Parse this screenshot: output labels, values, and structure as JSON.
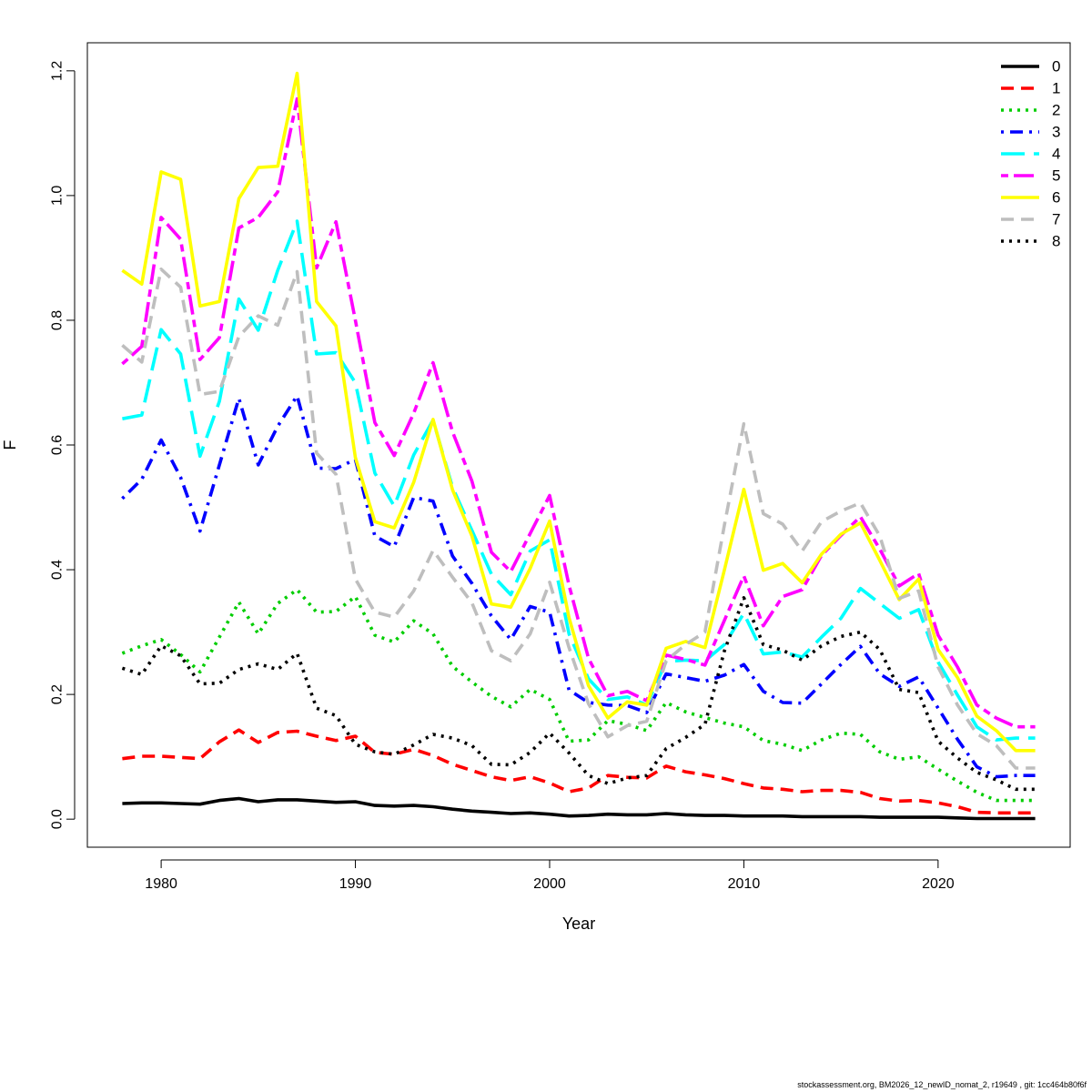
{
  "chart_data": {
    "type": "line",
    "title": "",
    "xlabel": "Year",
    "ylabel": "F",
    "xlim": [
      1976.2,
      1926.8
    ],
    "ylim": [
      -0.045,
      1.245
    ],
    "x_ticks": [
      1980,
      1990,
      2000,
      2010,
      2020
    ],
    "y_ticks": [
      0.0,
      0.2,
      0.4,
      0.6,
      0.8,
      1.0,
      1.2
    ],
    "y_tick_labels": [
      "0.0",
      "0.2",
      "0.4",
      "0.6",
      "0.8",
      "1.0",
      "1.2"
    ],
    "x_tick_labels": [
      "1980",
      "1990",
      "2000",
      "2010",
      "2020"
    ],
    "grid": false,
    "legend_position": "top-right",
    "x": [
      1978,
      1979,
      1980,
      1981,
      1982,
      1983,
      1984,
      1985,
      1986,
      1987,
      1988,
      1989,
      1990,
      1991,
      1992,
      1993,
      1994,
      1995,
      1996,
      1997,
      1998,
      1999,
      2000,
      2001,
      2002,
      2003,
      2004,
      2005,
      2006,
      2007,
      2008,
      2009,
      2010,
      2011,
      2012,
      2013,
      2014,
      2015,
      2016,
      2017,
      2018,
      2019,
      2020,
      2021,
      2022,
      2023,
      2024,
      2025
    ],
    "series": [
      {
        "name": "0",
        "color": "#000000",
        "dash": "solid",
        "values": [
          0.025,
          0.026,
          0.026,
          0.025,
          0.024,
          0.03,
          0.033,
          0.028,
          0.031,
          0.031,
          0.029,
          0.027,
          0.028,
          0.022,
          0.021,
          0.022,
          0.02,
          0.016,
          0.013,
          0.011,
          0.009,
          0.01,
          0.008,
          0.005,
          0.006,
          0.008,
          0.007,
          0.007,
          0.009,
          0.007,
          0.006,
          0.006,
          0.005,
          0.005,
          0.005,
          0.004,
          0.004,
          0.004,
          0.004,
          0.003,
          0.003,
          0.003,
          0.003,
          0.002,
          0.001,
          0.001,
          0.001,
          0.001
        ]
      },
      {
        "name": "1",
        "color": "#ff0000",
        "dash": "dashed",
        "values": [
          0.097,
          0.101,
          0.101,
          0.099,
          0.097,
          0.124,
          0.143,
          0.123,
          0.139,
          0.141,
          0.133,
          0.126,
          0.133,
          0.107,
          0.104,
          0.112,
          0.102,
          0.088,
          0.078,
          0.068,
          0.062,
          0.068,
          0.058,
          0.044,
          0.05,
          0.07,
          0.067,
          0.066,
          0.085,
          0.076,
          0.071,
          0.065,
          0.057,
          0.05,
          0.048,
          0.044,
          0.046,
          0.046,
          0.043,
          0.033,
          0.029,
          0.03,
          0.026,
          0.02,
          0.011,
          0.01,
          0.01,
          0.01
        ]
      },
      {
        "name": "2",
        "color": "#00cd00",
        "dash": "dotted",
        "values": [
          0.266,
          0.278,
          0.288,
          0.264,
          0.236,
          0.292,
          0.348,
          0.297,
          0.346,
          0.368,
          0.332,
          0.333,
          0.357,
          0.295,
          0.284,
          0.318,
          0.297,
          0.245,
          0.22,
          0.197,
          0.18,
          0.208,
          0.192,
          0.125,
          0.127,
          0.158,
          0.152,
          0.142,
          0.187,
          0.172,
          0.163,
          0.154,
          0.148,
          0.126,
          0.12,
          0.11,
          0.127,
          0.138,
          0.136,
          0.108,
          0.096,
          0.1,
          0.08,
          0.061,
          0.043,
          0.03,
          0.03,
          0.03
        ]
      },
      {
        "name": "3",
        "color": "#0000ff",
        "dash": "dotdash",
        "values": [
          0.514,
          0.545,
          0.608,
          0.548,
          0.462,
          0.568,
          0.675,
          0.568,
          0.63,
          0.679,
          0.563,
          0.562,
          0.577,
          0.454,
          0.437,
          0.516,
          0.51,
          0.422,
          0.378,
          0.326,
          0.288,
          0.341,
          0.332,
          0.207,
          0.187,
          0.183,
          0.182,
          0.171,
          0.233,
          0.227,
          0.221,
          0.231,
          0.248,
          0.205,
          0.187,
          0.186,
          0.217,
          0.248,
          0.277,
          0.233,
          0.213,
          0.228,
          0.178,
          0.128,
          0.084,
          0.068,
          0.07,
          0.07
        ]
      },
      {
        "name": "4",
        "color": "#00ffff",
        "dash": "longdash",
        "values": [
          0.642,
          0.648,
          0.785,
          0.746,
          0.582,
          0.67,
          0.834,
          0.784,
          0.88,
          0.959,
          0.746,
          0.748,
          0.7,
          0.555,
          0.502,
          0.584,
          0.64,
          0.532,
          0.463,
          0.393,
          0.36,
          0.43,
          0.448,
          0.297,
          0.225,
          0.192,
          0.196,
          0.183,
          0.253,
          0.255,
          0.254,
          0.28,
          0.33,
          0.265,
          0.268,
          0.26,
          0.292,
          0.322,
          0.37,
          0.346,
          0.322,
          0.336,
          0.252,
          0.199,
          0.148,
          0.127,
          0.13,
          0.13
        ]
      },
      {
        "name": "5",
        "color": "#ff00ff",
        "dash": "twodash",
        "values": [
          0.73,
          0.758,
          0.965,
          0.93,
          0.737,
          0.772,
          0.948,
          0.965,
          1.006,
          1.155,
          0.884,
          0.958,
          0.8,
          0.636,
          0.583,
          0.651,
          0.732,
          0.621,
          0.542,
          0.428,
          0.397,
          0.458,
          0.519,
          0.375,
          0.258,
          0.198,
          0.205,
          0.19,
          0.263,
          0.256,
          0.247,
          0.319,
          0.39,
          0.31,
          0.357,
          0.368,
          0.423,
          0.455,
          0.485,
          0.433,
          0.374,
          0.394,
          0.295,
          0.244,
          0.183,
          0.162,
          0.148,
          0.148
        ]
      },
      {
        "name": "6",
        "color": "#ffff00",
        "dash": "solid",
        "values": [
          0.88,
          0.858,
          1.038,
          1.026,
          0.823,
          0.83,
          0.995,
          1.045,
          1.047,
          1.196,
          0.83,
          0.791,
          0.58,
          0.477,
          0.467,
          0.54,
          0.641,
          0.528,
          0.454,
          0.345,
          0.34,
          0.402,
          0.478,
          0.323,
          0.214,
          0.162,
          0.188,
          0.183,
          0.274,
          0.285,
          0.275,
          0.4,
          0.529,
          0.399,
          0.41,
          0.379,
          0.425,
          0.457,
          0.475,
          0.415,
          0.352,
          0.385,
          0.272,
          0.227,
          0.165,
          0.142,
          0.11,
          0.11
        ]
      },
      {
        "name": "7",
        "color": "#bebebe",
        "dash": "dashed",
        "values": [
          0.76,
          0.733,
          0.882,
          0.853,
          0.681,
          0.686,
          0.774,
          0.807,
          0.792,
          0.878,
          0.587,
          0.553,
          0.385,
          0.332,
          0.324,
          0.366,
          0.431,
          0.388,
          0.347,
          0.27,
          0.254,
          0.297,
          0.38,
          0.275,
          0.185,
          0.132,
          0.15,
          0.157,
          0.254,
          0.28,
          0.3,
          0.472,
          0.634,
          0.49,
          0.473,
          0.43,
          0.477,
          0.494,
          0.507,
          0.454,
          0.354,
          0.366,
          0.244,
          0.183,
          0.137,
          0.118,
          0.082,
          0.082
        ]
      },
      {
        "name": "8",
        "color": "#000000",
        "dash": "dotted",
        "values": [
          0.242,
          0.232,
          0.278,
          0.262,
          0.217,
          0.218,
          0.24,
          0.249,
          0.24,
          0.266,
          0.178,
          0.166,
          0.12,
          0.108,
          0.104,
          0.119,
          0.136,
          0.13,
          0.118,
          0.088,
          0.087,
          0.107,
          0.138,
          0.106,
          0.07,
          0.057,
          0.066,
          0.07,
          0.113,
          0.131,
          0.152,
          0.27,
          0.355,
          0.28,
          0.271,
          0.255,
          0.278,
          0.293,
          0.3,
          0.272,
          0.208,
          0.203,
          0.125,
          0.098,
          0.075,
          0.063,
          0.048,
          0.048
        ]
      }
    ]
  },
  "footer": {
    "text": "stockassessment.org, BM2026_12_newID_nomat_2, r19649 , git: 1cc464b80f6f"
  }
}
